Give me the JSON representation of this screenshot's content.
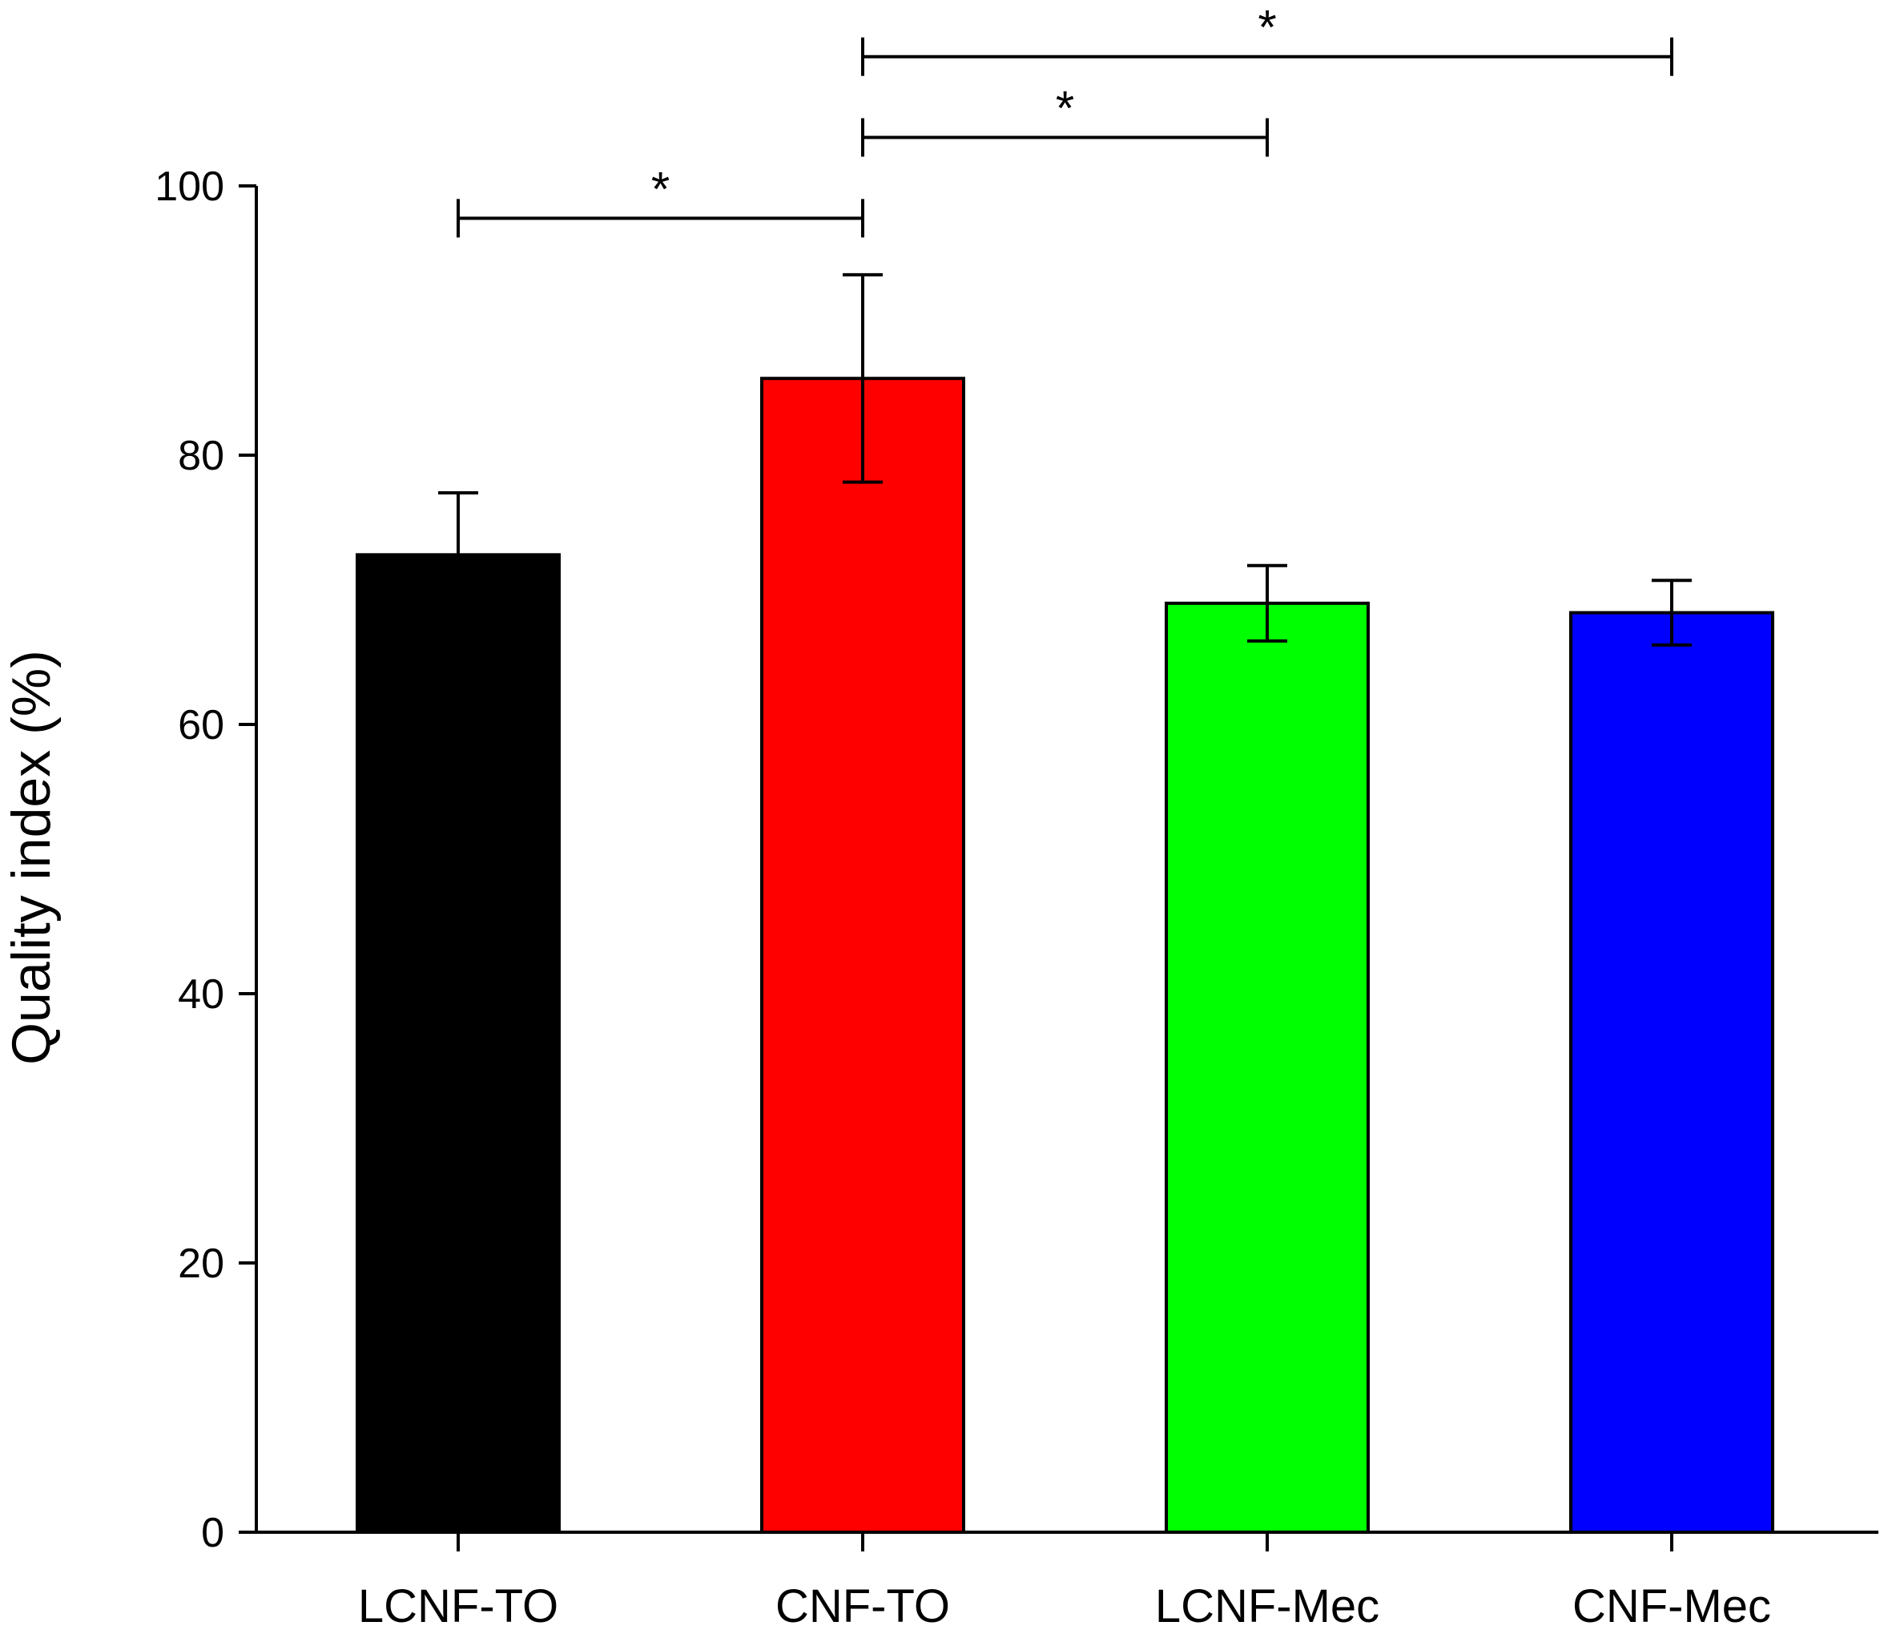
{
  "chart_data": {
    "type": "bar",
    "title": "",
    "xlabel": "",
    "ylabel": "Quality index (%)",
    "ylim": [
      0,
      100
    ],
    "yticks": [
      0,
      20,
      40,
      60,
      80,
      100
    ],
    "grid": false,
    "legend": "none",
    "categories": [
      "LCNF-TO",
      "CNF-TO",
      "LCNF-Mec",
      "CNF-Mec"
    ],
    "values": [
      72.6,
      85.7,
      69.0,
      68.3
    ],
    "errors": [
      4.6,
      7.7,
      2.8,
      2.4
    ],
    "colors": [
      "#000000",
      "#ff0000",
      "#00ff00",
      "#0000ff"
    ],
    "significance": [
      {
        "from": "LCNF-TO",
        "to": "CNF-TO",
        "level": 97.6,
        "label": "*"
      },
      {
        "from": "CNF-TO",
        "to": "LCNF-Mec",
        "level": 103.6,
        "label": "*"
      },
      {
        "from": "CNF-TO",
        "to": "CNF-Mec",
        "level": 109.6,
        "label": "*"
      }
    ]
  }
}
